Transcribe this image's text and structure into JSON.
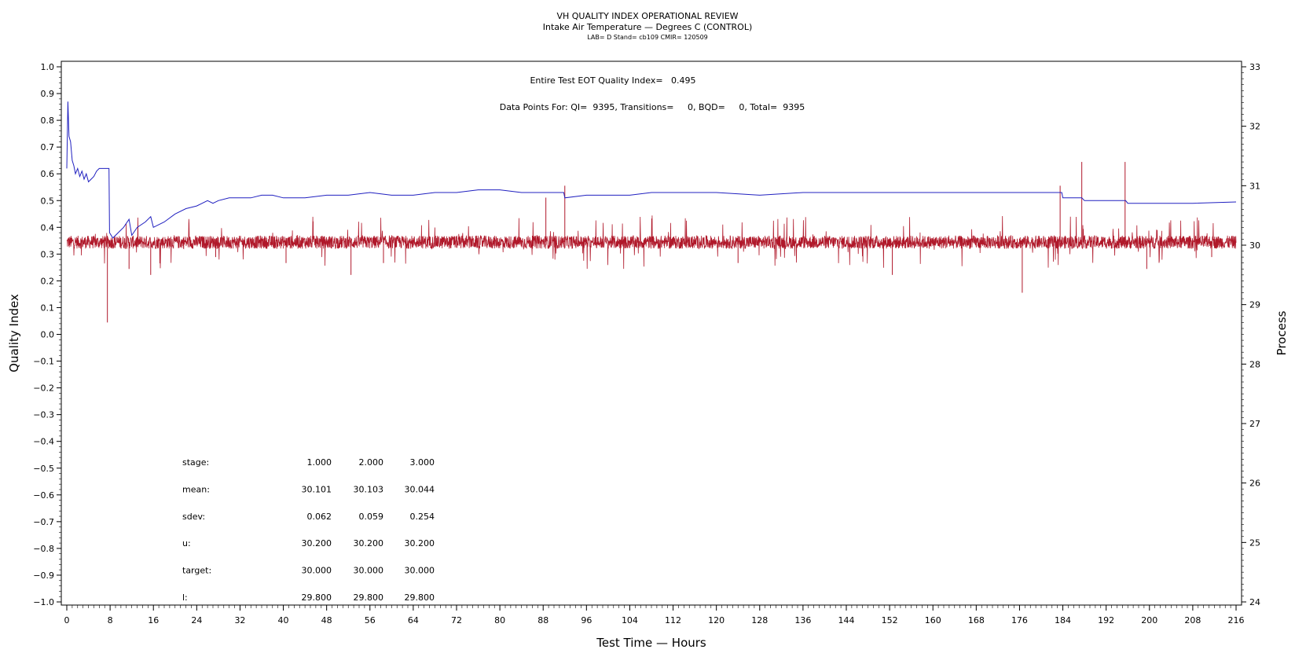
{
  "header": {
    "title": "VH QUALITY INDEX OPERATIONAL REVIEW",
    "subtitle": "Intake Air Temperature — Degrees C (CONTROL)",
    "meta": "LAB= D Stand= cb109 CMIR= 120509"
  },
  "annotations": {
    "eot": "Entire Test EOT Quality Index=   0.495",
    "datapoints": "Data Points For: QI=  9395, Transitions=     0, BQD=     0, Total=  9395"
  },
  "stats_table": {
    "rows": [
      {
        "label": "stage:",
        "values": [
          "1.000",
          "2.000",
          "3.000"
        ]
      },
      {
        "label": "mean:",
        "values": [
          "30.101",
          "30.103",
          "30.044"
        ]
      },
      {
        "label": "sdev:",
        "values": [
          "0.062",
          "0.059",
          "0.254"
        ]
      },
      {
        "label": "u:",
        "values": [
          "30.200",
          "30.200",
          "30.200"
        ]
      },
      {
        "label": "target:",
        "values": [
          "30.000",
          "30.000",
          "30.000"
        ]
      },
      {
        "label": "l:",
        "values": [
          "29.800",
          "29.800",
          "29.800"
        ]
      }
    ]
  },
  "chart_data": {
    "type": "line",
    "xlabel": "Test Time — Hours",
    "ylabel_left": "Quality Index",
    "ylabel_right": "Process",
    "xlim": [
      0,
      216
    ],
    "ylim_left": [
      -1.0,
      1.0
    ],
    "ylim_right": [
      24,
      33
    ],
    "x_ticks": [
      0,
      8,
      16,
      24,
      32,
      40,
      48,
      56,
      64,
      72,
      80,
      88,
      96,
      104,
      112,
      120,
      128,
      136,
      144,
      152,
      160,
      168,
      176,
      184,
      192,
      200,
      208,
      216
    ],
    "y_left_ticks": [
      "1.0",
      "0.9",
      "0.8",
      "0.7",
      "0.6",
      "0.5",
      "0.4",
      "0.3",
      "0.2",
      "0.1",
      "0.0",
      "−0.1",
      "−0.2",
      "−0.3",
      "−0.4",
      "−0.5",
      "−0.6",
      "−0.7",
      "−0.8",
      "−0.9",
      "−1.0"
    ],
    "y_right_ticks": [
      "33",
      "32",
      "31",
      "30",
      "29",
      "28",
      "27",
      "26",
      "25",
      "24"
    ],
    "series": [
      {
        "axis": "left",
        "color": "#2020c0",
        "points": [
          [
            0.0,
            0.62
          ],
          [
            0.2,
            0.87
          ],
          [
            0.4,
            0.74
          ],
          [
            0.7,
            0.72
          ],
          [
            1.0,
            0.65
          ],
          [
            1.3,
            0.63
          ],
          [
            1.6,
            0.6
          ],
          [
            2.0,
            0.62
          ],
          [
            2.4,
            0.59
          ],
          [
            2.8,
            0.61
          ],
          [
            3.2,
            0.58
          ],
          [
            3.6,
            0.6
          ],
          [
            4.0,
            0.57
          ],
          [
            4.5,
            0.58
          ],
          [
            5.0,
            0.59
          ],
          [
            5.5,
            0.61
          ],
          [
            6.0,
            0.62
          ],
          [
            6.5,
            0.62
          ],
          [
            7.0,
            0.62
          ],
          [
            7.5,
            0.62
          ],
          [
            7.8,
            0.62
          ],
          [
            7.9,
            0.38
          ],
          [
            8.5,
            0.36
          ],
          [
            9.5,
            0.38
          ],
          [
            10.5,
            0.4
          ],
          [
            11.5,
            0.43
          ],
          [
            12.0,
            0.37
          ],
          [
            13.0,
            0.4
          ],
          [
            14.5,
            0.42
          ],
          [
            15.5,
            0.44
          ],
          [
            16.0,
            0.4
          ],
          [
            18,
            0.42
          ],
          [
            20,
            0.45
          ],
          [
            22,
            0.47
          ],
          [
            24,
            0.48
          ],
          [
            26,
            0.5
          ],
          [
            27,
            0.49
          ],
          [
            28,
            0.5
          ],
          [
            30,
            0.51
          ],
          [
            32,
            0.51
          ],
          [
            34,
            0.51
          ],
          [
            36,
            0.52
          ],
          [
            38,
            0.52
          ],
          [
            40,
            0.51
          ],
          [
            44,
            0.51
          ],
          [
            48,
            0.52
          ],
          [
            52,
            0.52
          ],
          [
            56,
            0.53
          ],
          [
            60,
            0.52
          ],
          [
            64,
            0.52
          ],
          [
            68,
            0.53
          ],
          [
            72,
            0.53
          ],
          [
            76,
            0.54
          ],
          [
            80,
            0.54
          ],
          [
            84,
            0.53
          ],
          [
            88,
            0.53
          ],
          [
            91.8,
            0.53
          ],
          [
            92.0,
            0.51
          ],
          [
            96,
            0.52
          ],
          [
            100,
            0.52
          ],
          [
            104,
            0.52
          ],
          [
            108,
            0.53
          ],
          [
            112,
            0.53
          ],
          [
            116,
            0.53
          ],
          [
            120,
            0.53
          ],
          [
            128,
            0.52
          ],
          [
            136,
            0.53
          ],
          [
            144,
            0.53
          ],
          [
            152,
            0.53
          ],
          [
            160,
            0.53
          ],
          [
            168,
            0.53
          ],
          [
            176,
            0.53
          ],
          [
            183.8,
            0.53
          ],
          [
            184.0,
            0.51
          ],
          [
            187.5,
            0.51
          ],
          [
            188.0,
            0.5
          ],
          [
            192,
            0.5
          ],
          [
            195.6,
            0.5
          ],
          [
            196.0,
            0.49
          ],
          [
            200,
            0.49
          ],
          [
            208,
            0.49
          ],
          [
            216,
            0.495
          ]
        ]
      },
      {
        "axis": "right",
        "color": "#b0182a",
        "baseline": 30.05,
        "spikes": [
          [
            7.5,
            28.7
          ],
          [
            11.5,
            29.6
          ],
          [
            15.5,
            29.5
          ],
          [
            27.5,
            29.8
          ],
          [
            40.5,
            29.7
          ],
          [
            45.5,
            30.4
          ],
          [
            52.5,
            29.5
          ],
          [
            58.5,
            29.7
          ],
          [
            88.5,
            30.8
          ],
          [
            92.0,
            31.0
          ],
          [
            124,
            29.7
          ],
          [
            152.5,
            29.5
          ],
          [
            176.5,
            29.2
          ],
          [
            183.5,
            31.0
          ],
          [
            187.5,
            31.4
          ],
          [
            195.5,
            31.4
          ],
          [
            199.5,
            29.6
          ],
          [
            211.5,
            29.8
          ]
        ]
      }
    ]
  }
}
